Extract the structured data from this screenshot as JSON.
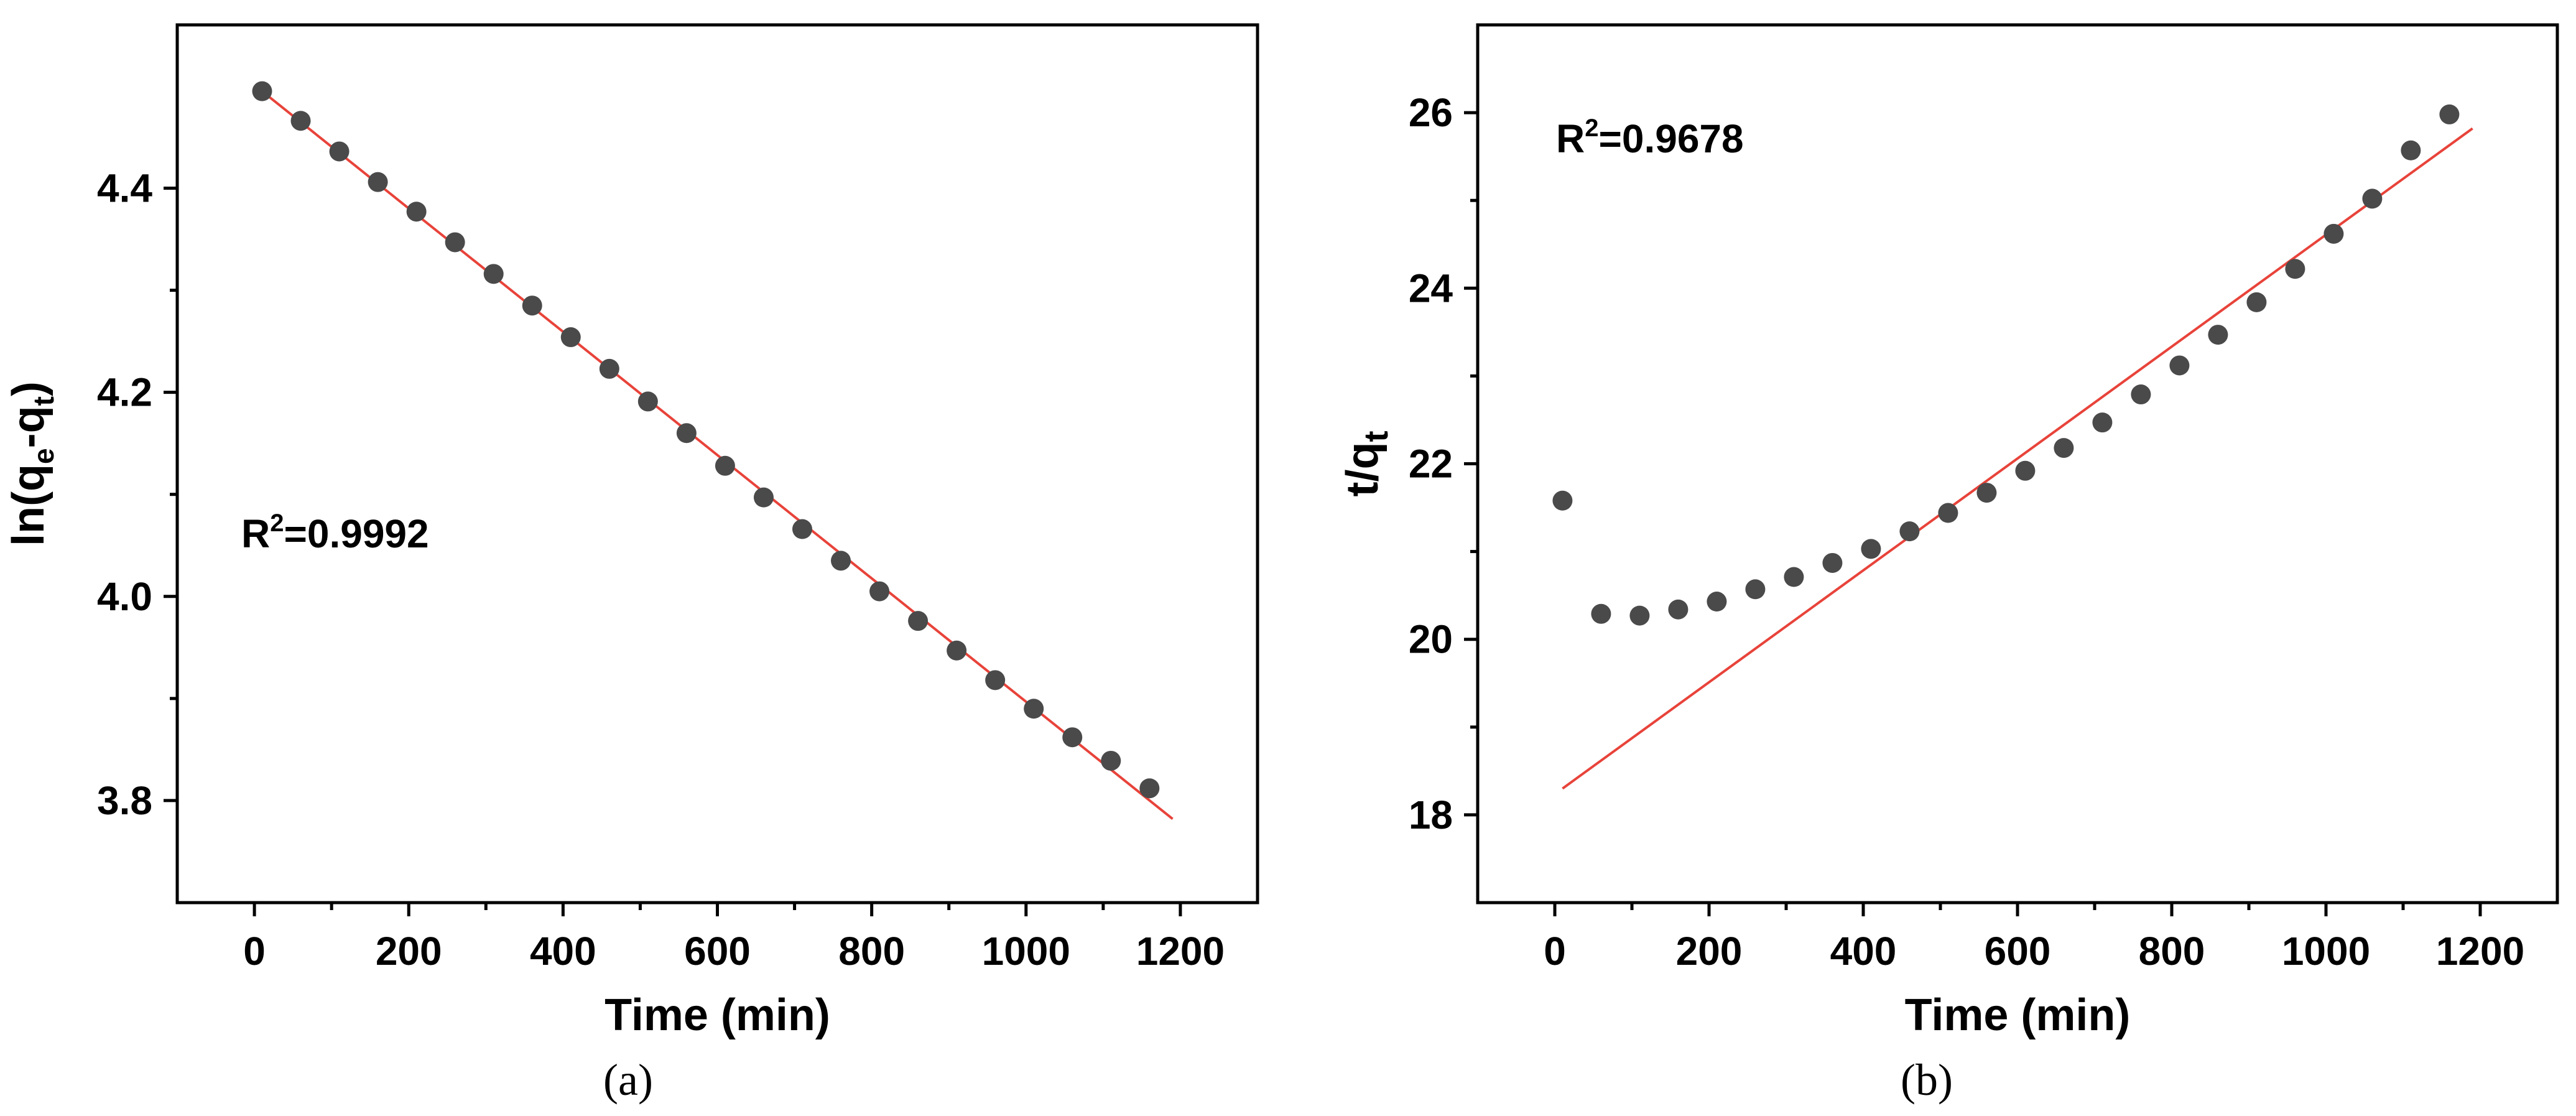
{
  "chart_data": [
    {
      "type": "scatter",
      "panel": "(a)",
      "xlabel": "Time (min)",
      "ylabel": "ln(qₑ-qₜ)",
      "ylabel_parts": {
        "main": "ln(q",
        "sub1": "e",
        "mid": "-q",
        "sub2": "t",
        "end": ")"
      },
      "annotation": {
        "base": "R",
        "sup": "2",
        "rest": "=0.9992"
      },
      "xlim": [
        -100,
        1300
      ],
      "ylim": [
        3.7,
        4.56
      ],
      "xticks": [
        0,
        200,
        400,
        600,
        800,
        1000,
        1200
      ],
      "yticks": [
        3.8,
        4.0,
        4.2,
        4.4
      ],
      "ytick_labels": [
        "3.8",
        "4.0",
        "4.2",
        "4.4"
      ],
      "x": [
        10,
        60,
        110,
        160,
        210,
        260,
        310,
        360,
        410,
        460,
        510,
        560,
        610,
        660,
        710,
        760,
        810,
        860,
        910,
        960,
        1010,
        1060,
        1110,
        1160
      ],
      "y": [
        4.495,
        4.466,
        4.436,
        4.406,
        4.377,
        4.347,
        4.316,
        4.285,
        4.254,
        4.223,
        4.191,
        4.16,
        4.128,
        4.097,
        4.066,
        4.035,
        4.005,
        3.976,
        3.947,
        3.918,
        3.89,
        3.862,
        3.839,
        3.812
      ],
      "fit_line": {
        "x": [
          10,
          1190
        ],
        "y": [
          4.495,
          3.782
        ]
      }
    },
    {
      "type": "scatter",
      "panel": "(b)",
      "xlabel": "Time (min)",
      "ylabel": "t/qₜ",
      "ylabel_parts": {
        "main": "t/q",
        "sub": "t"
      },
      "annotation": {
        "base": "R",
        "sup": "2",
        "rest": "=0.9678"
      },
      "xlim": [
        -100,
        1300
      ],
      "ylim": [
        17,
        27
      ],
      "xticks": [
        0,
        200,
        400,
        600,
        800,
        1000,
        1200
      ],
      "yticks": [
        18,
        20,
        22,
        24,
        26
      ],
      "ytick_labels": [
        "18",
        "20",
        "22",
        "24",
        "26"
      ],
      "x": [
        10,
        60,
        110,
        160,
        210,
        260,
        310,
        360,
        410,
        460,
        510,
        560,
        610,
        660,
        710,
        760,
        810,
        860,
        910,
        960,
        1010,
        1060,
        1110,
        1160
      ],
      "y": [
        21.58,
        20.29,
        20.27,
        20.34,
        20.43,
        20.57,
        20.71,
        20.87,
        21.03,
        21.23,
        21.44,
        21.67,
        21.92,
        22.18,
        22.47,
        22.79,
        23.12,
        23.47,
        23.84,
        24.22,
        24.62,
        25.02,
        25.57,
        25.98
      ],
      "fit_line": {
        "x": [
          10,
          1190
        ],
        "y": [
          18.3,
          25.82
        ]
      }
    }
  ]
}
